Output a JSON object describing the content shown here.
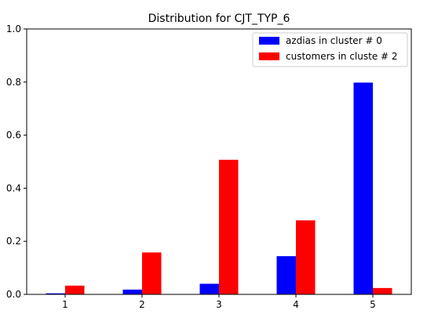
{
  "chart_data": {
    "type": "bar",
    "title": "Distribution for CJT_TYP_6",
    "xlabel": "",
    "ylabel": "",
    "categories": [
      "1",
      "2",
      "3",
      "4",
      "5"
    ],
    "ylim": [
      0,
      1.0
    ],
    "yticks": [
      "0.0",
      "0.2",
      "0.4",
      "0.6",
      "0.8",
      "1.0"
    ],
    "grid": false,
    "legend_position": "top-right",
    "series": [
      {
        "name": "azdias in cluster # 0",
        "color": "#0000ff",
        "values": [
          0.004,
          0.018,
          0.04,
          0.144,
          0.798
        ]
      },
      {
        "name": "customers in cluste # 2",
        "color": "#ff0000",
        "values": [
          0.033,
          0.158,
          0.507,
          0.279,
          0.024
        ]
      }
    ]
  }
}
